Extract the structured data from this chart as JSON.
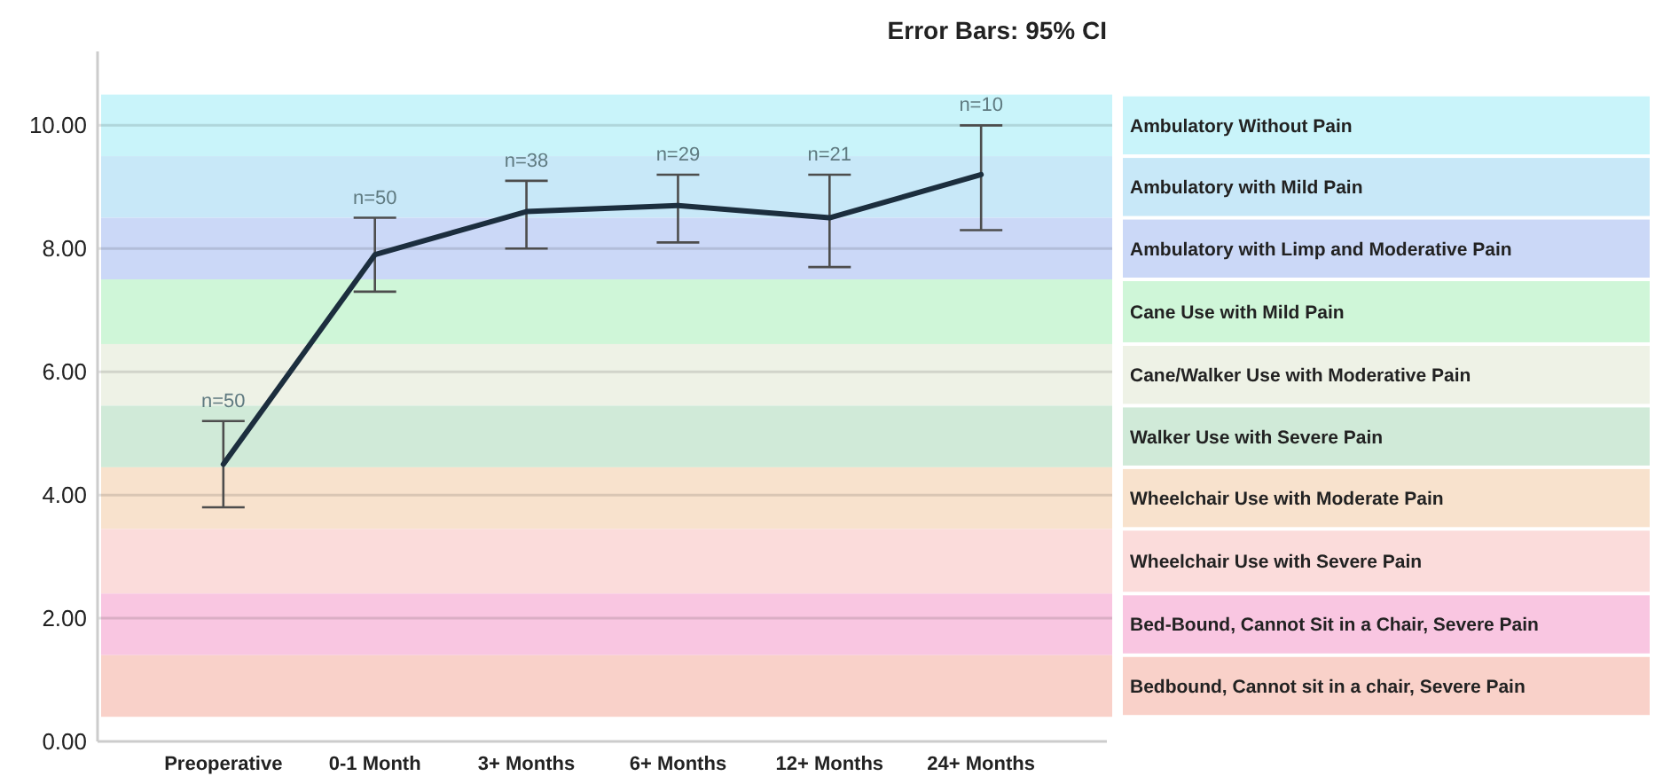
{
  "chart_data": {
    "type": "line",
    "title": "Error Bars: 95% CI",
    "categories": [
      "Preoperative",
      "0-1 Month",
      "3+ Months",
      "6+ Months",
      "12+ Months",
      "24+ Months"
    ],
    "series": [
      {
        "color": "#1c2e3e",
        "values": [
          4.5,
          7.9,
          8.6,
          8.7,
          8.5,
          9.2
        ],
        "errors": [
          [
            3.8,
            5.2
          ],
          [
            7.3,
            8.5
          ],
          [
            8.0,
            9.1
          ],
          [
            8.1,
            9.2
          ],
          [
            7.7,
            9.2
          ],
          [
            8.3,
            10.0
          ]
        ]
      }
    ],
    "ylim": [
      0,
      11.2
    ],
    "yticks": [
      {
        "value": 0,
        "label": "0.00"
      },
      {
        "value": 2,
        "label": "2.00"
      },
      {
        "value": 4,
        "label": "4.00"
      },
      {
        "value": 6,
        "label": "6.00"
      },
      {
        "value": 8,
        "label": "8.00"
      },
      {
        "value": 10,
        "label": "10.00"
      }
    ],
    "grid": "y",
    "marker": "none",
    "line_style": "solid",
    "bands": [
      {
        "axis": "y",
        "from": 9.5,
        "to": 10.5,
        "label": "Ambulatory Without Pain",
        "color": "#c9f4fa"
      },
      {
        "axis": "y",
        "from": 8.5,
        "to": 9.5,
        "label": "Ambulatory with Mild Pain",
        "color": "#c8e8f8"
      },
      {
        "axis": "y",
        "from": 7.5,
        "to": 8.5,
        "label": "Ambulatory with Limp and Moderative Pain",
        "color": "#cbd8f7"
      },
      {
        "axis": "y",
        "from": 6.45,
        "to": 7.5,
        "label": "Cane Use with Mild Pain",
        "color": "#cff6d8"
      },
      {
        "axis": "y",
        "from": 5.45,
        "to": 6.45,
        "label": "Cane/Walker Use with Moderative Pain",
        "color": "#eef2e6"
      },
      {
        "axis": "y",
        "from": 4.45,
        "to": 5.45,
        "label": "Walker Use with Severe Pain",
        "color": "#d0ead8"
      },
      {
        "axis": "y",
        "from": 3.45,
        "to": 4.45,
        "label": "Wheelchair Use with Moderate Pain",
        "color": "#f8e2cd"
      },
      {
        "axis": "y",
        "from": 2.4,
        "to": 3.45,
        "label": "Wheelchair Use with Severe Pain",
        "color": "#fbdcdb"
      },
      {
        "axis": "y",
        "from": 1.4,
        "to": 2.4,
        "label": "Bed-Bound, Cannot Sit in a Chair, Severe Pain",
        "color": "#f9c6e1"
      },
      {
        "axis": "y",
        "from": 0.4,
        "to": 1.4,
        "label": "Bedbound, Cannot sit in a chair, Severe Pain",
        "color": "#f9d1c9"
      }
    ],
    "annotations": [
      {
        "text": "n=50",
        "x": "Preoperative",
        "y": 5.2
      },
      {
        "text": "n=50",
        "x": "0-1 Month",
        "y": 8.5
      },
      {
        "text": "n=38",
        "x": "3+ Months",
        "y": 9.1
      },
      {
        "text": "n=29",
        "x": "6+ Months",
        "y": 9.2
      },
      {
        "text": "n=21",
        "x": "12+ Months",
        "y": 9.2
      },
      {
        "text": "n=10",
        "x": "24+ Months",
        "y": 10.0
      }
    ]
  }
}
